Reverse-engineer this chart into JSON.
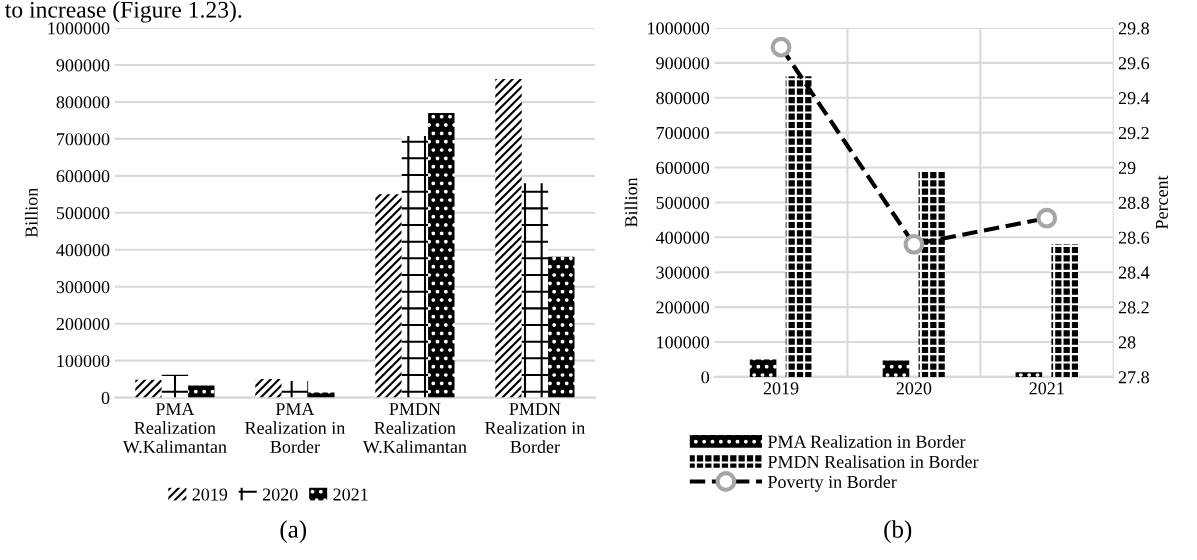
{
  "chart_data": [
    {
      "type": "bar",
      "ylabel": "Billion",
      "categories": [
        "PMA Realization W.Kalimantan",
        "PMA Realization in Border",
        "PMDN Realization W.Kalimantan",
        "PMDN Realization in Border"
      ],
      "series": [
        {
          "name": "2019",
          "color": "#000000",
          "values": [
            48000,
            50000,
            550000,
            862000
          ]
        },
        {
          "name": "2020",
          "color": "#000000",
          "values": [
            62000,
            45000,
            708000,
            580000
          ]
        },
        {
          "name": "2021",
          "color": "#000000",
          "values": [
            33000,
            14000,
            770000,
            381000
          ]
        }
      ],
      "ylim": [
        0,
        1000000
      ],
      "yticks": [
        0,
        100000,
        200000,
        300000,
        400000,
        500000,
        600000,
        700000,
        800000,
        900000,
        1000000
      ],
      "grid": "y",
      "legend": "bottom",
      "annotations": [
        "to increase (Figure 1.23).",
        "(a)"
      ]
    },
    {
      "type": "bar",
      "ylabel": "Billion",
      "y2label": "Percent",
      "categories": [
        "2019",
        "2020",
        "2021"
      ],
      "series": [
        {
          "name": "PMA Realization in Border",
          "color": "#000000",
          "values": [
            50000,
            47000,
            13000
          ]
        },
        {
          "name": "PMDN Realisation in Border",
          "color": "#000000",
          "values": [
            862000,
            590000,
            380000
          ]
        },
        {
          "name": "Poverty in Border",
          "type": "line",
          "axis": "y2",
          "color": "#000000",
          "marker": "circle",
          "line_style": "dashed",
          "values": [
            29.69,
            28.56,
            28.71
          ]
        }
      ],
      "ylim": [
        0,
        1000000
      ],
      "yticks": [
        0,
        100000,
        200000,
        300000,
        400000,
        500000,
        600000,
        700000,
        800000,
        900000,
        1000000
      ],
      "y2lim": [
        27.8,
        29.8
      ],
      "y2ticks": [
        {
          "value": 27.8,
          "label": "27.8"
        },
        28,
        {
          "value": 28.2,
          "label": "28.2"
        },
        {
          "value": 28.4,
          "label": "28.4"
        },
        {
          "value": 28.6,
          "label": "28.6"
        },
        {
          "value": 28.8,
          "label": "28.8"
        },
        29,
        {
          "value": 29.2,
          "label": "29.2"
        },
        {
          "value": 29.4,
          "label": "29.4"
        },
        {
          "value": 29.6,
          "label": "29.6"
        },
        {
          "value": 29.8,
          "label": "29.8"
        }
      ],
      "grid": true,
      "legend": "bottom",
      "annotations": [
        "(b)"
      ]
    }
  ]
}
